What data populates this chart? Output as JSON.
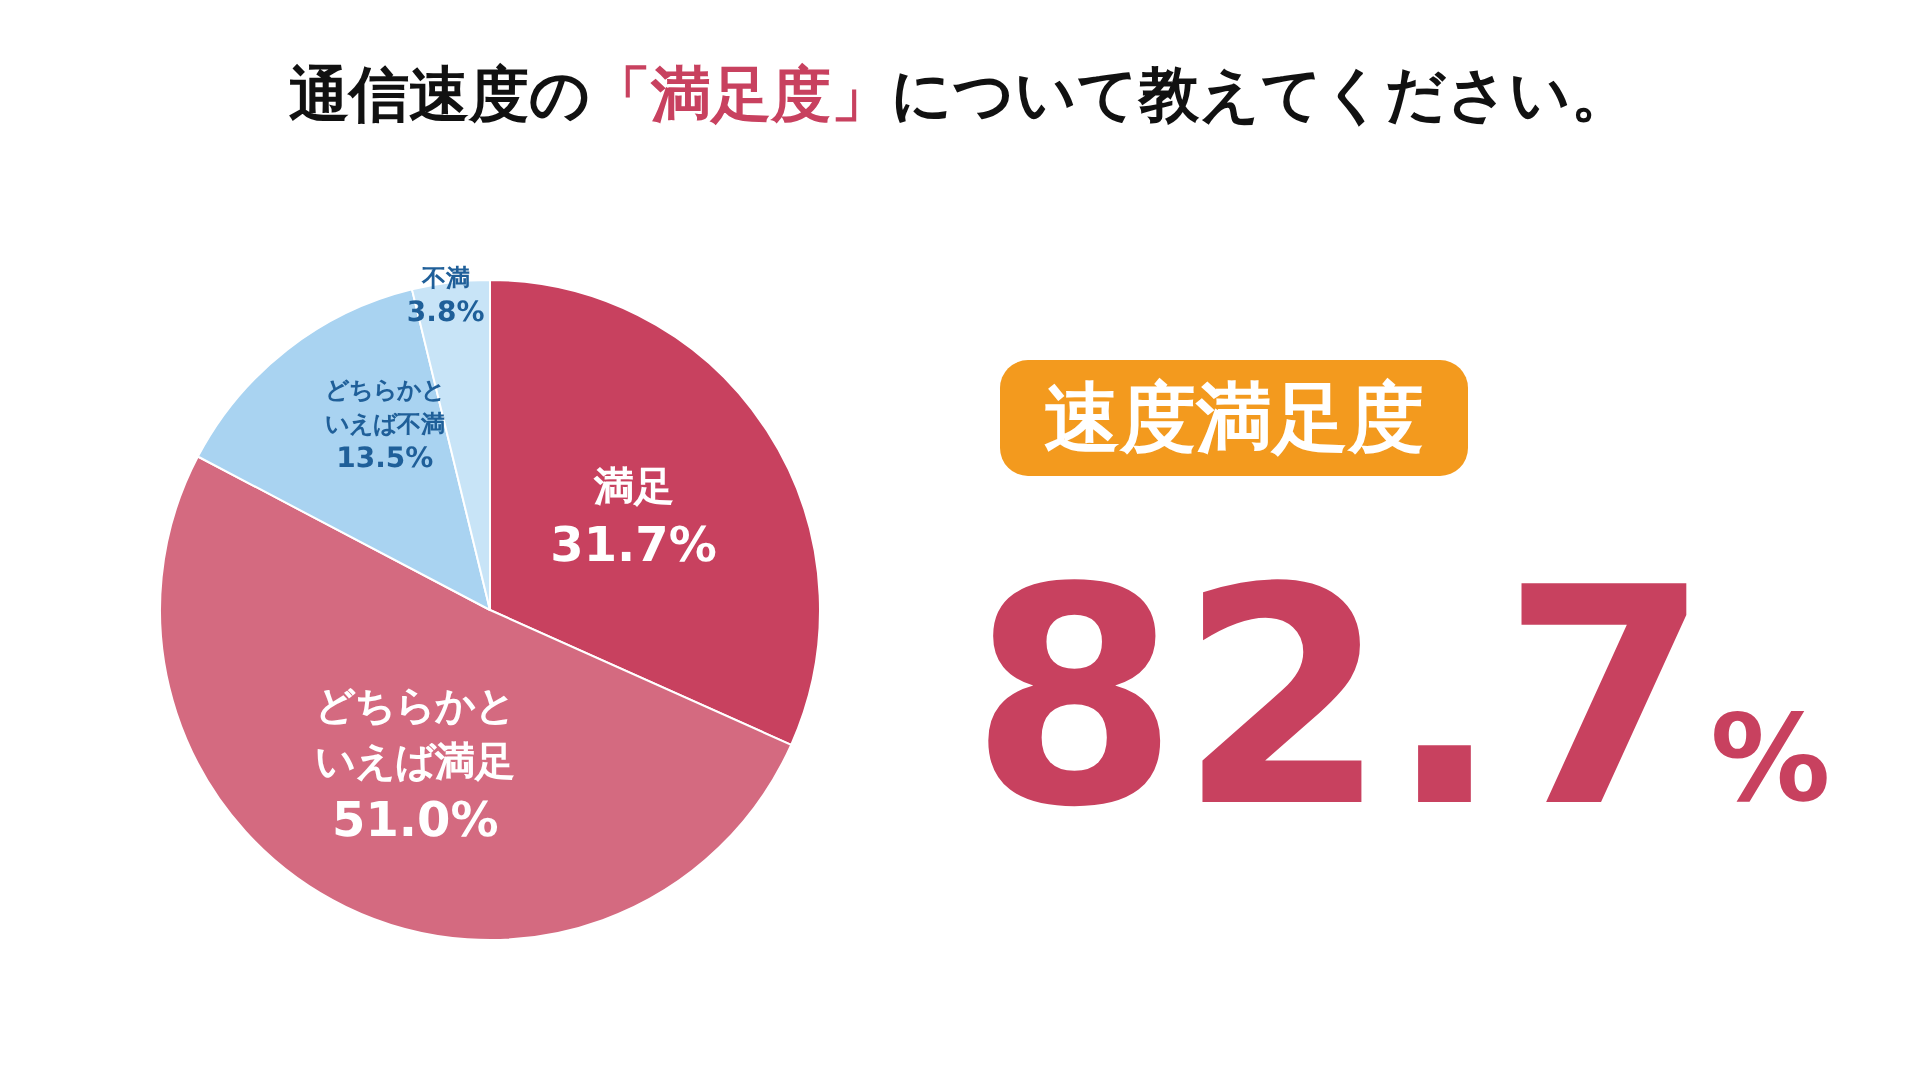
{
  "chart_data": {
    "type": "pie",
    "title": "通信速度の「満足度」について教えてください。",
    "categories": [
      "満足",
      "どちらかといえば満足",
      "どちらかといえば不満",
      "不満"
    ],
    "values": [
      31.7,
      51.0,
      13.5,
      3.8
    ],
    "value_labels": [
      "31.7%",
      "51.0%",
      "13.5%",
      "3.8%"
    ],
    "colors": [
      "#c8415f",
      "#d46a80",
      "#a9d3f1",
      "#c8e4f7"
    ],
    "legend": false,
    "annotations": [
      "速度満足度",
      "82.7%"
    ]
  }
}
